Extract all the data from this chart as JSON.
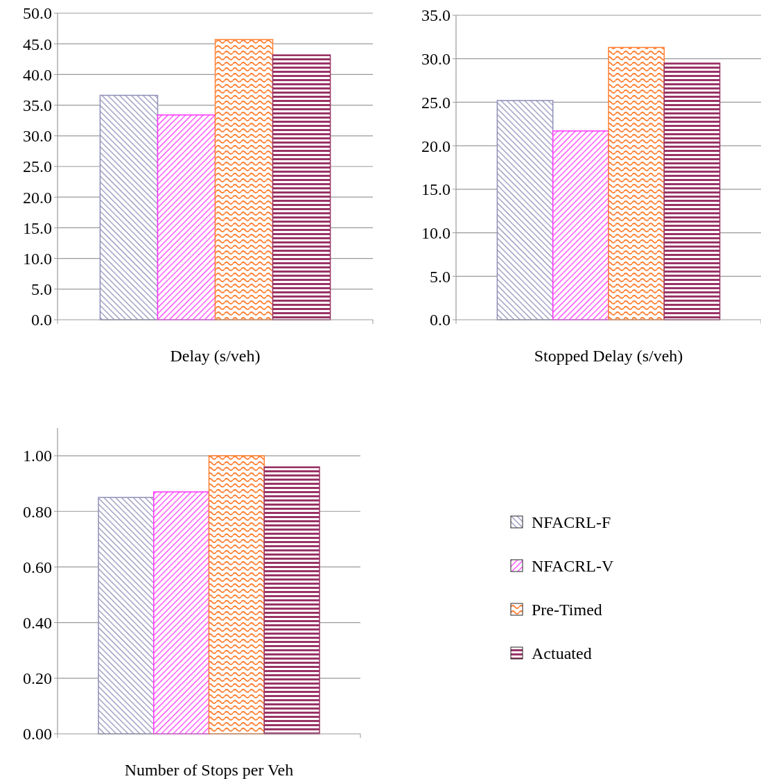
{
  "chart_data": [
    {
      "type": "bar",
      "xlabel": "Delay (s/veh)",
      "categories": [
        null
      ],
      "series": [
        {
          "color": "#8e8eb8",
          "values": [
            36.6
          ]
        },
        {
          "color": "#ff33ff",
          "values": [
            33.4
          ]
        },
        {
          "color": "#ff8033",
          "values": [
            45.7
          ]
        },
        {
          "color": "#993366",
          "values": [
            43.2
          ]
        }
      ],
      "ylim": [
        0,
        50
      ],
      "yticks": [
        {
          "value": 0,
          "label": "0.0"
        },
        {
          "value": 5,
          "label": "5.0"
        },
        {
          "value": 10,
          "label": "10.0"
        },
        {
          "value": 15,
          "label": "15.0"
        },
        {
          "value": 20,
          "label": "20.0"
        },
        {
          "value": 25,
          "label": "25.0"
        },
        {
          "value": 30,
          "label": "30.0"
        },
        {
          "value": 35,
          "label": "35.0"
        },
        {
          "value": 40,
          "label": "40.0"
        },
        {
          "value": 45,
          "label": "45.0"
        },
        {
          "value": 50,
          "label": "50.0"
        }
      ],
      "grid": "y",
      "legend": false
    },
    {
      "type": "bar",
      "xlabel": "Stopped Delay (s/veh)",
      "categories": [
        null
      ],
      "series": [
        {
          "color": "#8e8eb8",
          "values": [
            25.2
          ]
        },
        {
          "color": "#ff33ff",
          "values": [
            21.7
          ]
        },
        {
          "color": "#ff8033",
          "values": [
            31.3
          ]
        },
        {
          "color": "#993366",
          "values": [
            29.5
          ]
        }
      ],
      "ylim": [
        0,
        35
      ],
      "yticks": [
        {
          "value": 0,
          "label": "0.0"
        },
        {
          "value": 5,
          "label": "5.0"
        },
        {
          "value": 10,
          "label": "10.0"
        },
        {
          "value": 15,
          "label": "15.0"
        },
        {
          "value": 20,
          "label": "20.0"
        },
        {
          "value": 25,
          "label": "25.0"
        },
        {
          "value": 30,
          "label": "30.0"
        },
        {
          "value": 35,
          "label": "35.0"
        }
      ],
      "grid": "y",
      "legend": false
    },
    {
      "type": "bar",
      "xlabel": "Number of Stops per Veh",
      "categories": [
        null
      ],
      "series": [
        {
          "name": "NFACRL-F",
          "color": "#8e8eb8",
          "values": [
            0.85
          ]
        },
        {
          "name": "NFACRL-V",
          "color": "#ff33ff",
          "values": [
            0.87
          ]
        },
        {
          "name": "Pre-Timed",
          "color": "#ff8033",
          "values": [
            1.0
          ]
        },
        {
          "name": "Actuated",
          "color": "#993366",
          "values": [
            0.96
          ]
        }
      ],
      "ylim": [
        0,
        1.1
      ],
      "yticks": [
        {
          "value": 0,
          "label": "0.00"
        },
        {
          "value": 0.2,
          "label": "0.20"
        },
        {
          "value": 0.4,
          "label": "0.40"
        },
        {
          "value": 0.6,
          "label": "0.60"
        },
        {
          "value": 0.8,
          "label": "0.80"
        },
        {
          "value": 1,
          "label": "1.00"
        }
      ],
      "grid": "y",
      "legend": "right"
    }
  ]
}
